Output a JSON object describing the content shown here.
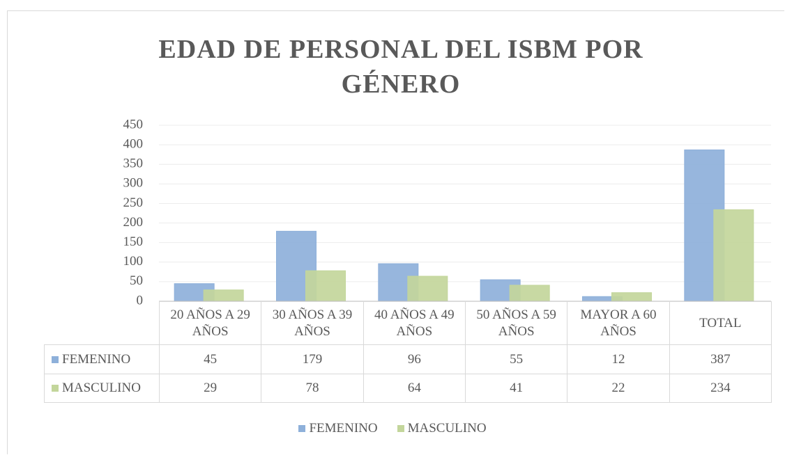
{
  "chart_data": {
    "type": "bar",
    "title": "EDAD DE PERSONAL DEL ISBM POR GÉNERO",
    "categories": [
      "20 AÑOS A 29 AÑOS",
      "30 AÑOS A 39 AÑOS",
      "40 AÑOS A 49 AÑOS",
      "50 AÑOS A 59 AÑOS",
      "MAYOR A 60 AÑOS",
      "TOTAL"
    ],
    "series": [
      {
        "name": "FEMENINO",
        "color": "#8eb0da",
        "values": [
          45,
          179,
          96,
          55,
          12,
          387
        ]
      },
      {
        "name": "MASCULINO",
        "color": "#c3d69b",
        "values": [
          29,
          78,
          64,
          41,
          22,
          234
        ]
      }
    ],
    "ylim": [
      0,
      450
    ],
    "yticks": [
      0,
      50,
      100,
      150,
      200,
      250,
      300,
      350,
      400,
      450
    ],
    "grid": true,
    "legend": "bottom"
  }
}
